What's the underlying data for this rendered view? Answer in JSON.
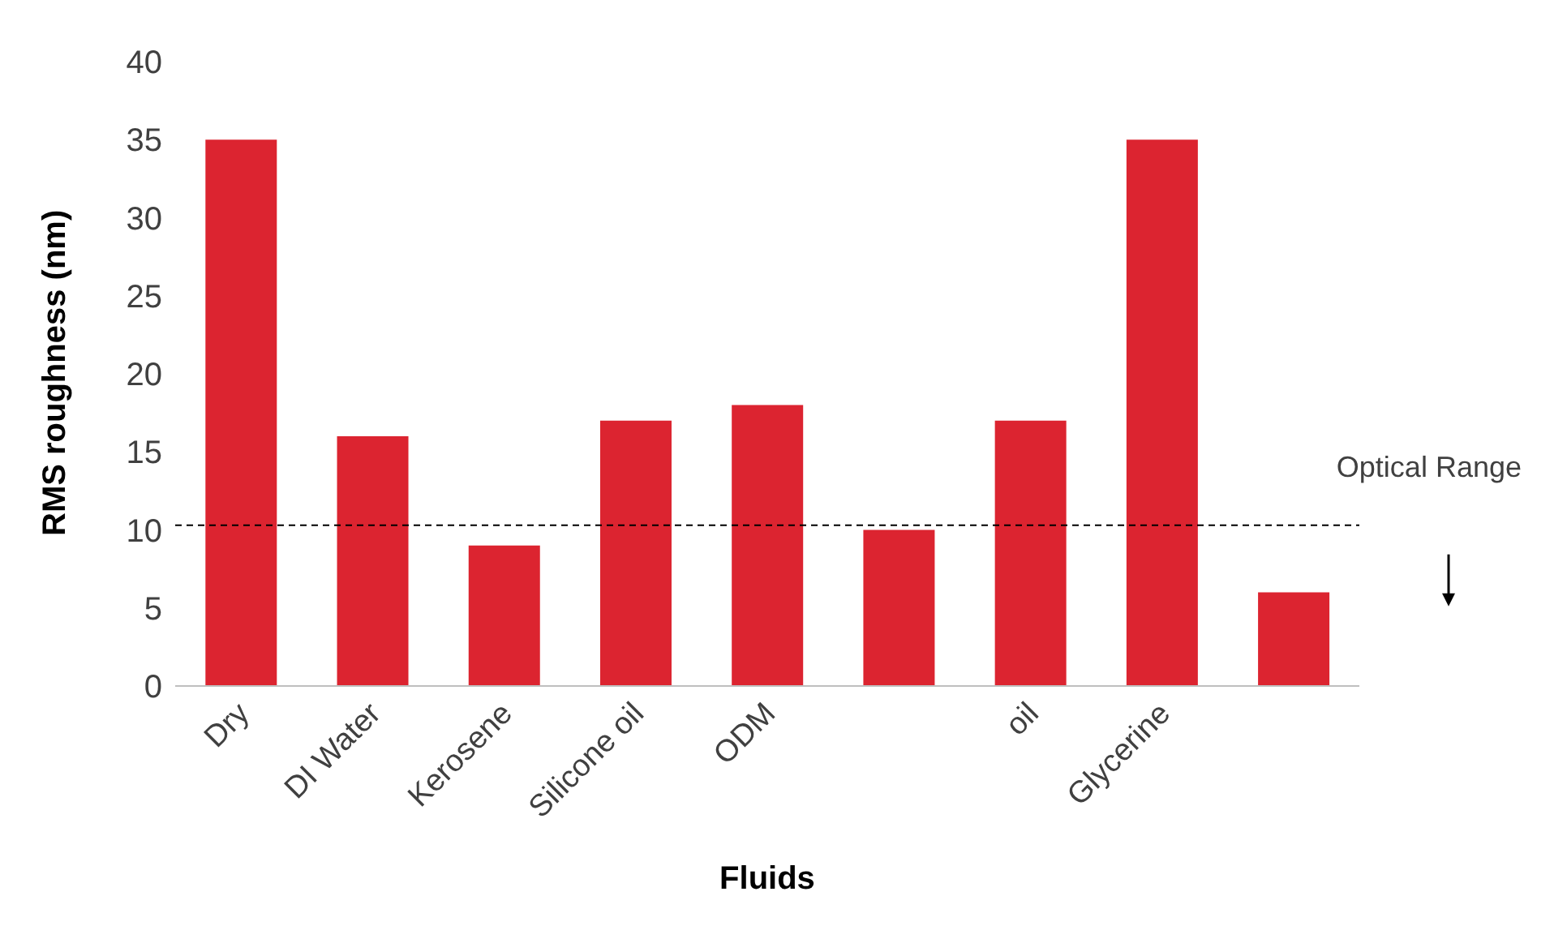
{
  "chart_data": {
    "type": "bar",
    "xlabel": "Fluids",
    "ylabel": "RMS roughness (nm)",
    "categories": [
      "Dry",
      "DI Water",
      "Kerosene",
      "Silicone oil",
      "ODM",
      null,
      "oil",
      "Glycerine",
      null
    ],
    "values": [
      35,
      16,
      9,
      17,
      18,
      10,
      17,
      35,
      6
    ],
    "color": "#dc2430",
    "ylim": [
      0,
      40
    ],
    "yticks": [
      0,
      5,
      10,
      15,
      20,
      25,
      30,
      35,
      40
    ],
    "grid": false,
    "legend": false,
    "ref_lines": [
      {
        "axis": "y",
        "value": 10.3,
        "label": "Optical Range",
        "color": "#000000",
        "line_style": "dashed"
      }
    ]
  }
}
